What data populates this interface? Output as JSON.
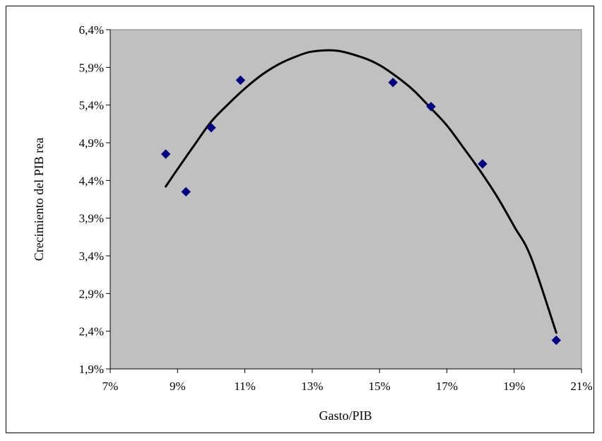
{
  "chart_data": {
    "type": "scatter",
    "xlabel": "Gasto/PIB",
    "ylabel": "Crecimiento del PIB rea",
    "xlim": [
      0.07,
      0.21
    ],
    "ylim": [
      0.019,
      0.064
    ],
    "x_ticks": [
      0.07,
      0.09,
      0.11,
      0.13,
      0.15,
      0.17,
      0.19,
      0.21
    ],
    "x_tick_labels": [
      "7%",
      "9%",
      "11%",
      "13%",
      "15%",
      "17%",
      "19%",
      "21%"
    ],
    "y_ticks": [
      0.019,
      0.024,
      0.029,
      0.034,
      0.039,
      0.044,
      0.049,
      0.054,
      0.059,
      0.064
    ],
    "y_tick_labels": [
      "1,9%",
      "2,4%",
      "2,9%",
      "3,4%",
      "3,9%",
      "4,4%",
      "4,9%",
      "5,4%",
      "5,9%",
      "6,4%"
    ],
    "grid": false,
    "legend": "none",
    "plot_background": "#c0c0c0",
    "series": [
      {
        "type": "scatter",
        "marker": "diamond",
        "color": "#000080",
        "x": [
          0.0865,
          0.0925,
          0.1,
          0.1087,
          0.154,
          0.1653,
          0.1806,
          0.2025
        ],
        "y": [
          0.0475,
          0.0425,
          0.051,
          0.0573,
          0.057,
          0.0538,
          0.0462,
          0.0228
        ]
      },
      {
        "type": "line",
        "color": "#000000",
        "x": [
          0.0865,
          0.09,
          0.095,
          0.1,
          0.105,
          0.11,
          0.115,
          0.12,
          0.125,
          0.13,
          0.1375,
          0.145,
          0.15,
          0.155,
          0.16,
          0.165,
          0.17,
          0.175,
          0.18,
          0.185,
          0.19,
          0.195,
          0.2025
        ],
        "y": [
          0.0432,
          0.0455,
          0.0487,
          0.0518,
          0.0541,
          0.0562,
          0.058,
          0.0594,
          0.0604,
          0.0611,
          0.0612,
          0.0603,
          0.0593,
          0.0578,
          0.056,
          0.0537,
          0.0513,
          0.0483,
          0.0452,
          0.0418,
          0.0379,
          0.0338,
          0.0238
        ]
      }
    ]
  }
}
